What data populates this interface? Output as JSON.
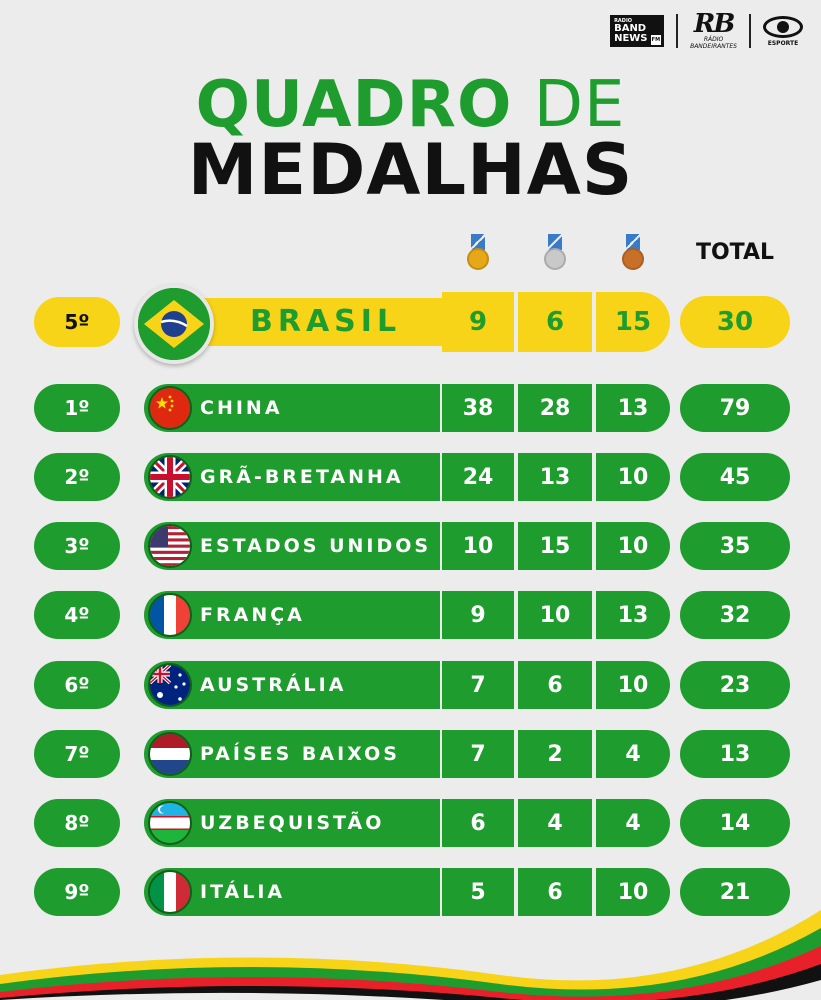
{
  "logos": {
    "band_top": "RADIO",
    "band_main1": "BAND",
    "band_main2": "NEWS",
    "band_fm": "FM",
    "rb": "RB",
    "rb_sub1": "RÁDIO",
    "rb_sub2": "BANDEIRANTES",
    "esporte": "ESPORTE"
  },
  "title": {
    "line1_a": "QUADRO",
    "line1_b": " DE",
    "line2": "MEDALHAS"
  },
  "header": {
    "total": "TOTAL"
  },
  "colors": {
    "green": "#1e9c2e",
    "yellow": "#f7d417",
    "gold": "#e6a817",
    "silver": "#c9c9c9",
    "bronze": "#c8702a"
  },
  "highlight": {
    "rank": "5º",
    "country": "BRASIL",
    "gold": "9",
    "silver": "6",
    "bronze": "15",
    "total": "30",
    "flag": "brazil-flag"
  },
  "rows": [
    {
      "rank": "1º",
      "country": "CHINA",
      "gold": "38",
      "silver": "28",
      "bronze": "13",
      "total": "79",
      "flag": "china-flag"
    },
    {
      "rank": "2º",
      "country": "GRÃ-BRETANHA",
      "gold": "24",
      "silver": "13",
      "bronze": "10",
      "total": "45",
      "flag": "uk-flag"
    },
    {
      "rank": "3º",
      "country": "ESTADOS UNIDOS",
      "gold": "10",
      "silver": "15",
      "bronze": "10",
      "total": "35",
      "flag": "usa-flag"
    },
    {
      "rank": "4º",
      "country": "FRANÇA",
      "gold": "9",
      "silver": "10",
      "bronze": "13",
      "total": "32",
      "flag": "france-flag"
    },
    {
      "rank": "6º",
      "country": "AUSTRÁLIA",
      "gold": "7",
      "silver": "6",
      "bronze": "10",
      "total": "23",
      "flag": "australia-flag"
    },
    {
      "rank": "7º",
      "country": "PAÍSES BAIXOS",
      "gold": "7",
      "silver": "2",
      "bronze": "4",
      "total": "13",
      "flag": "netherlands-flag"
    },
    {
      "rank": "8º",
      "country": "UZBEQUISTÃO",
      "gold": "6",
      "silver": "4",
      "bronze": "4",
      "total": "14",
      "flag": "uzbekistan-flag"
    },
    {
      "rank": "9º",
      "country": "ITÁLIA",
      "gold": "5",
      "silver": "6",
      "bronze": "10",
      "total": "21",
      "flag": "italy-flag"
    }
  ]
}
